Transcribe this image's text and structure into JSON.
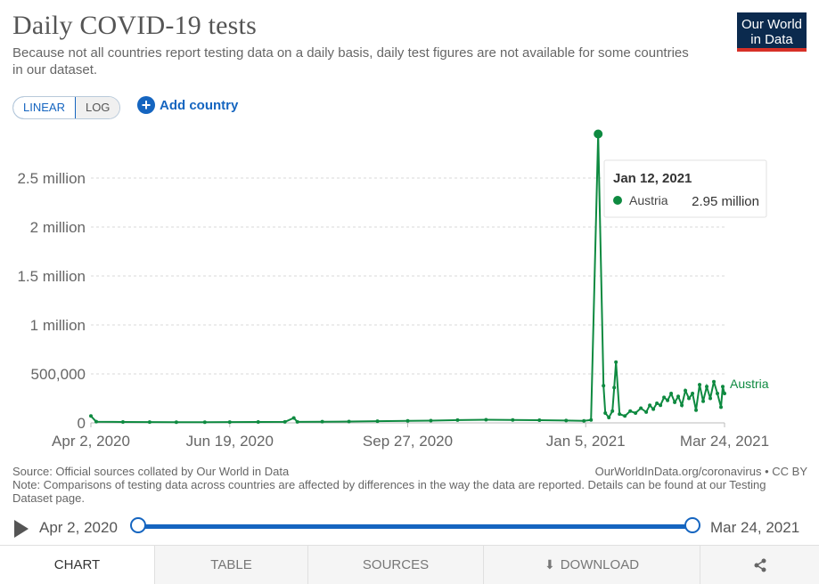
{
  "header": {
    "title": "Daily COVID-19 tests",
    "subtitle": "Because not all countries report testing data on a daily basis, daily test figures are not available for some countries in our dataset.",
    "logo_line1": "Our World",
    "logo_line2": "in Data"
  },
  "controls": {
    "linear_label": "LINEAR",
    "log_label": "LOG",
    "add_country_label": "Add country",
    "active_scale": "linear"
  },
  "colors": {
    "series": "#0e8a40",
    "accent": "#1565c0"
  },
  "chart_data": {
    "type": "line",
    "ylim": [
      0,
      3000000
    ],
    "y_ticks": [
      0,
      500000,
      1000000,
      1500000,
      2000000,
      2500000
    ],
    "y_tick_labels": [
      "0",
      "500,000",
      "1 million",
      "1.5 million",
      "2 million",
      "2.5 million"
    ],
    "x_range": [
      "2020-04-02",
      "2021-03-24"
    ],
    "x_ticks": [
      "2020-04-02",
      "2020-06-19",
      "2020-09-27",
      "2021-01-05",
      "2021-03-24"
    ],
    "x_tick_labels": [
      "Apr 2, 2020",
      "Jun 19, 2020",
      "Sep 27, 2020",
      "Jan 5, 2021",
      "Mar 24, 2021"
    ],
    "grid": true,
    "series": [
      {
        "name": "Austria",
        "points": [
          [
            "2020-04-02",
            70000
          ],
          [
            "2020-04-05",
            12000
          ],
          [
            "2020-04-20",
            9000
          ],
          [
            "2020-05-05",
            8000
          ],
          [
            "2020-05-20",
            7000
          ],
          [
            "2020-06-05",
            7000
          ],
          [
            "2020-06-19",
            8000
          ],
          [
            "2020-07-05",
            9000
          ],
          [
            "2020-07-20",
            10000
          ],
          [
            "2020-07-25",
            50000
          ],
          [
            "2020-07-27",
            10000
          ],
          [
            "2020-08-10",
            12000
          ],
          [
            "2020-08-25",
            14000
          ],
          [
            "2020-09-10",
            17000
          ],
          [
            "2020-09-27",
            20000
          ],
          [
            "2020-10-10",
            23000
          ],
          [
            "2020-10-25",
            28000
          ],
          [
            "2020-11-10",
            32000
          ],
          [
            "2020-11-25",
            30000
          ],
          [
            "2020-12-10",
            27000
          ],
          [
            "2020-12-25",
            24000
          ],
          [
            "2021-01-04",
            20000
          ],
          [
            "2021-01-08",
            30000
          ],
          [
            "2021-01-12",
            2950000
          ],
          [
            "2021-01-15",
            380000
          ],
          [
            "2021-01-16",
            100000
          ],
          [
            "2021-01-18",
            55000
          ],
          [
            "2021-01-20",
            120000
          ],
          [
            "2021-01-21",
            360000
          ],
          [
            "2021-01-22",
            620000
          ],
          [
            "2021-01-24",
            90000
          ],
          [
            "2021-01-27",
            70000
          ],
          [
            "2021-01-30",
            120000
          ],
          [
            "2021-02-02",
            100000
          ],
          [
            "2021-02-05",
            150000
          ],
          [
            "2021-02-08",
            110000
          ],
          [
            "2021-02-10",
            180000
          ],
          [
            "2021-02-12",
            140000
          ],
          [
            "2021-02-14",
            200000
          ],
          [
            "2021-02-16",
            180000
          ],
          [
            "2021-02-18",
            260000
          ],
          [
            "2021-02-20",
            230000
          ],
          [
            "2021-02-22",
            300000
          ],
          [
            "2021-02-24",
            210000
          ],
          [
            "2021-02-26",
            270000
          ],
          [
            "2021-02-28",
            180000
          ],
          [
            "2021-03-02",
            330000
          ],
          [
            "2021-03-04",
            250000
          ],
          [
            "2021-03-06",
            300000
          ],
          [
            "2021-03-08",
            130000
          ],
          [
            "2021-03-10",
            390000
          ],
          [
            "2021-03-12",
            220000
          ],
          [
            "2021-03-14",
            370000
          ],
          [
            "2021-03-16",
            250000
          ],
          [
            "2021-03-18",
            420000
          ],
          [
            "2021-03-20",
            300000
          ],
          [
            "2021-03-22",
            160000
          ],
          [
            "2021-03-23",
            370000
          ],
          [
            "2021-03-24",
            300000
          ]
        ]
      }
    ],
    "tooltip": {
      "date": "Jan 12, 2021",
      "series": "Austria",
      "value": "2.95 million"
    },
    "end_label": "Austria"
  },
  "footer": {
    "source": "Source: Official sources collated by Our World in Data",
    "license": "OurWorldInData.org/coronavirus • CC BY",
    "note": "Note: Comparisons of testing data across countries are affected by differences in the way the data are reported. Details can be found at our Testing Dataset page."
  },
  "timeline": {
    "start": "Apr 2, 2020",
    "end": "Mar 24, 2021"
  },
  "tabs": [
    "CHART",
    "TABLE",
    "SOURCES",
    "DOWNLOAD",
    ""
  ]
}
